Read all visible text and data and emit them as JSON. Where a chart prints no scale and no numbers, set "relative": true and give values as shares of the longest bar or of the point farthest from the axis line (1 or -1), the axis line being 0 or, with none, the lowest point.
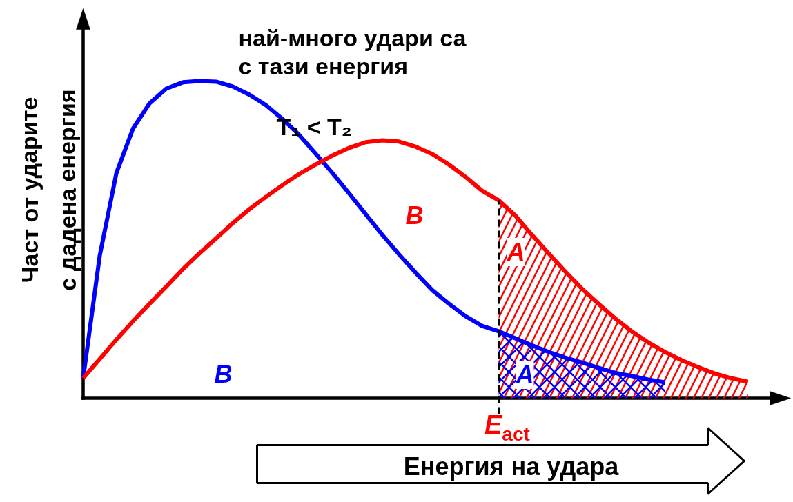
{
  "chart_data": {
    "type": "line",
    "relative": true,
    "xlabel": "Енергия на удара",
    "ylabel": "Част от ударите\nс дадена енергия",
    "categories": [
      null,
      null,
      null,
      null,
      null,
      null,
      null,
      null,
      null,
      null,
      null,
      null,
      null,
      null,
      null,
      null,
      null,
      null,
      null,
      null,
      null,
      null,
      null,
      null,
      null,
      null,
      null,
      null,
      null,
      null,
      null,
      null,
      null,
      null,
      null,
      null,
      null,
      null,
      null,
      null,
      null
    ],
    "series": [
      {
        "color": "#ff0000",
        "type": "area",
        "values": [
          null,
          null,
          null,
          null,
          null,
          null,
          null,
          null,
          null,
          null,
          null,
          null,
          null,
          null,
          null,
          null,
          null,
          null,
          null,
          null,
          null,
          null,
          null,
          null,
          null,
          0.624,
          0.576,
          0.515,
          0.457,
          0.4,
          0.346,
          0.298,
          0.252,
          0.211,
          0.176,
          0.146,
          0.12,
          0.098,
          0.078,
          0.063,
          0.052
        ]
      },
      {
        "color": "#0000ff",
        "type": "area",
        "values": [
          null,
          null,
          null,
          null,
          null,
          null,
          null,
          null,
          null,
          null,
          null,
          null,
          null,
          null,
          null,
          null,
          null,
          null,
          null,
          null,
          null,
          null,
          null,
          null,
          null,
          0.211,
          0.189,
          0.167,
          0.146,
          0.128,
          0.113,
          0.096,
          0.08,
          0.07,
          0.059,
          0.05,
          null,
          null,
          null,
          null,
          null
        ]
      },
      {
        "color": "#0000ff",
        "values": [
          0.063,
          0.45,
          0.71,
          0.85,
          0.93,
          0.976,
          0.996,
          1.0,
          0.998,
          0.983,
          0.957,
          0.924,
          0.88,
          0.83,
          0.77,
          0.71,
          0.646,
          0.58,
          0.515,
          0.454,
          0.396,
          0.341,
          0.298,
          0.259,
          0.228,
          0.211,
          0.189,
          0.167,
          0.146,
          0.128,
          0.113,
          0.096,
          0.08,
          0.07,
          0.059,
          0.05,
          null,
          null,
          null,
          null,
          null
        ]
      },
      {
        "color": "#ff0000",
        "values": [
          0.063,
          0.124,
          0.185,
          0.243,
          0.298,
          0.352,
          0.407,
          0.457,
          0.504,
          0.552,
          0.596,
          0.635,
          0.672,
          0.707,
          0.737,
          0.765,
          0.789,
          0.807,
          0.813,
          0.809,
          0.793,
          0.77,
          0.737,
          0.698,
          0.654,
          0.624,
          0.576,
          0.515,
          0.457,
          0.4,
          0.346,
          0.298,
          0.252,
          0.211,
          0.176,
          0.146,
          0.12,
          0.098,
          0.078,
          0.063,
          0.052
        ]
      }
    ],
    "annotations": [
      "най-много удари са\nс тази енергия",
      "T₁ < T₂",
      "B",
      "B",
      "A",
      "A",
      "E$_{act}$"
    ]
  }
}
